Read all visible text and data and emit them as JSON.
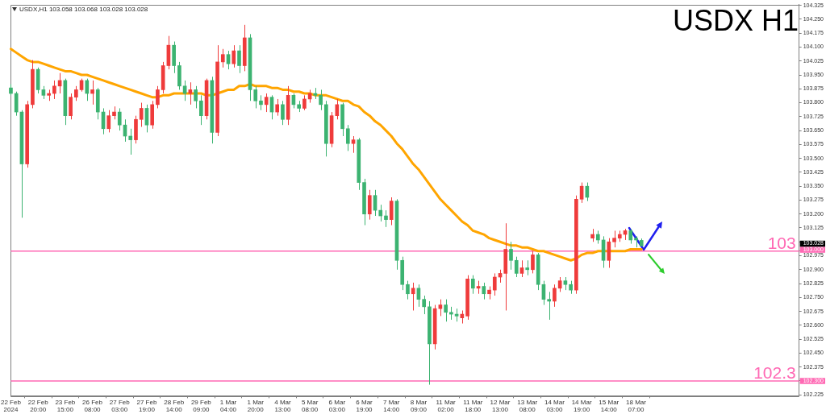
{
  "chart_data": {
    "type": "candlestick",
    "title": "USDX H1",
    "subtitle": "USDX,H1 103.058 103.068 103.028 103.028",
    "categories": [
      "22 Feb 2024",
      null,
      null,
      null,
      null,
      "22 Feb 20:00",
      null,
      null,
      null,
      null,
      "23 Feb 15:00",
      null,
      null,
      null,
      null,
      "26 Feb 08:00",
      null,
      null,
      null,
      null,
      "27 Feb 03:00",
      null,
      null,
      null,
      null,
      "27 Feb 19:00",
      null,
      null,
      null,
      null,
      "28 Feb 14:00",
      null,
      null,
      null,
      null,
      "29 Feb 09:00",
      null,
      null,
      null,
      null,
      "1 Mar 04:00",
      null,
      null,
      null,
      null,
      "1 Mar 20:00",
      null,
      null,
      null,
      null,
      "4 Mar 13:00",
      null,
      null,
      null,
      null,
      "5 Mar 08:00",
      null,
      null,
      null,
      null,
      "6 Mar 03:00",
      null,
      null,
      null,
      null,
      "6 Mar 19:00",
      null,
      null,
      null,
      null,
      "7 Mar 14:00",
      null,
      null,
      null,
      null,
      "8 Mar 09:00",
      null,
      null,
      null,
      null,
      "11 Mar 02:00",
      null,
      null,
      null,
      null,
      "11 Mar 18:00",
      null,
      null,
      null,
      null,
      "12 Mar 13:00",
      null,
      null,
      null,
      null,
      "13 Mar 08:00",
      null,
      null,
      null,
      null,
      "14 Mar 03:00",
      null,
      null,
      null,
      null,
      "14 Mar 19:00",
      null,
      null,
      null,
      null,
      "15 Mar 14:00",
      null,
      null,
      null,
      null,
      "18 Mar 07:00",
      null,
      null,
      null,
      null,
      null,
      null,
      null,
      null,
      null,
      null,
      null,
      null,
      null,
      null,
      null,
      null,
      null,
      null,
      null,
      null,
      null,
      null,
      null,
      null,
      null,
      null,
      null,
      null,
      null,
      null
    ],
    "ohlc": [
      [
        103.88,
        103.9,
        103.84,
        103.85
      ],
      [
        103.85,
        103.86,
        103.73,
        103.75
      ],
      [
        103.75,
        103.76,
        103.18,
        103.47
      ],
      [
        103.47,
        103.81,
        103.45,
        103.79
      ],
      [
        103.79,
        104.03,
        103.77,
        103.98
      ],
      [
        103.98,
        103.99,
        103.85,
        103.87
      ],
      [
        103.87,
        103.89,
        103.82,
        103.84
      ],
      [
        103.84,
        103.87,
        103.81,
        103.85
      ],
      [
        103.85,
        103.92,
        103.82,
        103.89
      ],
      [
        103.89,
        103.96,
        103.85,
        103.92
      ],
      [
        103.92,
        103.93,
        103.68,
        103.73
      ],
      [
        103.73,
        103.85,
        103.71,
        103.83
      ],
      [
        103.83,
        103.89,
        103.81,
        103.87
      ],
      [
        103.87,
        103.93,
        103.86,
        103.92
      ],
      [
        103.92,
        103.93,
        103.81,
        103.85
      ],
      [
        103.85,
        103.92,
        103.79,
        103.87
      ],
      [
        103.87,
        103.88,
        103.71,
        103.75
      ],
      [
        103.75,
        103.77,
        103.63,
        103.66
      ],
      [
        103.66,
        103.76,
        103.64,
        103.73
      ],
      [
        103.73,
        103.78,
        103.71,
        103.75
      ],
      [
        103.75,
        103.77,
        103.65,
        103.68
      ],
      [
        103.68,
        103.71,
        103.59,
        103.62
      ],
      [
        103.62,
        103.66,
        103.52,
        103.6
      ],
      [
        103.6,
        103.73,
        103.58,
        103.71
      ],
      [
        103.71,
        103.8,
        103.67,
        103.77
      ],
      [
        103.77,
        103.79,
        103.64,
        103.68
      ],
      [
        103.68,
        103.81,
        103.66,
        103.79
      ],
      [
        103.79,
        103.89,
        103.77,
        103.87
      ],
      [
        103.87,
        104.02,
        103.85,
        104.0
      ],
      [
        104.0,
        104.16,
        103.98,
        104.11
      ],
      [
        104.11,
        104.13,
        103.96,
        104.0
      ],
      [
        104.0,
        104.02,
        103.87,
        103.89
      ],
      [
        103.89,
        103.92,
        103.81,
        103.85
      ],
      [
        103.85,
        103.91,
        103.79,
        103.87
      ],
      [
        103.87,
        103.89,
        103.77,
        103.81
      ],
      [
        103.81,
        103.84,
        103.68,
        103.73
      ],
      [
        103.73,
        103.93,
        103.71,
        103.92
      ],
      [
        103.92,
        103.94,
        103.58,
        103.64
      ],
      [
        103.64,
        104.11,
        103.62,
        104.02
      ],
      [
        104.02,
        104.09,
        103.99,
        104.06
      ],
      [
        104.06,
        104.08,
        103.98,
        104.01
      ],
      [
        104.01,
        104.11,
        103.99,
        104.08
      ],
      [
        104.08,
        104.11,
        103.96,
        104.0
      ],
      [
        104.0,
        104.22,
        103.97,
        104.15
      ],
      [
        104.15,
        104.17,
        103.81,
        103.87
      ],
      [
        103.87,
        103.89,
        103.77,
        103.81
      ],
      [
        103.81,
        103.84,
        103.76,
        103.79
      ],
      [
        103.79,
        103.85,
        103.75,
        103.83
      ],
      [
        103.83,
        103.84,
        103.71,
        103.75
      ],
      [
        103.75,
        103.82,
        103.73,
        103.79
      ],
      [
        103.79,
        103.81,
        103.68,
        103.71
      ],
      [
        103.71,
        103.89,
        103.68,
        103.84
      ],
      [
        103.84,
        103.85,
        103.77,
        103.79
      ],
      [
        103.79,
        103.81,
        103.75,
        103.77
      ],
      [
        103.77,
        103.84,
        103.76,
        103.82
      ],
      [
        103.82,
        103.87,
        103.8,
        103.85
      ],
      [
        103.85,
        103.88,
        103.82,
        103.84
      ],
      [
        103.84,
        103.87,
        103.76,
        103.79
      ],
      [
        103.79,
        103.81,
        103.51,
        103.58
      ],
      [
        103.58,
        103.75,
        103.56,
        103.73
      ],
      [
        103.73,
        103.82,
        103.71,
        103.79
      ],
      [
        103.79,
        103.8,
        103.62,
        103.66
      ],
      [
        103.66,
        103.68,
        103.54,
        103.58
      ],
      [
        103.58,
        103.62,
        103.53,
        103.6
      ],
      [
        103.6,
        103.61,
        103.33,
        103.37
      ],
      [
        103.37,
        103.39,
        103.14,
        103.2
      ],
      [
        103.2,
        103.33,
        103.17,
        103.3
      ],
      [
        103.3,
        103.33,
        103.19,
        103.22
      ],
      [
        103.22,
        103.25,
        103.16,
        103.19
      ],
      [
        103.19,
        103.22,
        103.13,
        103.17
      ],
      [
        103.17,
        103.29,
        103.14,
        103.27
      ],
      [
        103.27,
        103.28,
        102.9,
        102.95
      ],
      [
        102.95,
        102.97,
        102.79,
        102.82
      ],
      [
        102.82,
        102.84,
        102.74,
        102.77
      ],
      [
        102.77,
        102.83,
        102.68,
        102.8
      ],
      [
        102.8,
        102.82,
        102.7,
        102.74
      ],
      [
        102.74,
        102.76,
        102.66,
        102.7
      ],
      [
        102.7,
        102.73,
        102.28,
        102.5
      ],
      [
        102.5,
        102.71,
        102.47,
        102.69
      ],
      [
        102.69,
        102.74,
        102.65,
        102.71
      ],
      [
        102.71,
        102.74,
        102.62,
        102.67
      ],
      [
        102.67,
        102.7,
        102.63,
        102.66
      ],
      [
        102.66,
        102.69,
        102.62,
        102.65
      ],
      [
        102.64,
        102.68,
        102.61,
        102.66
      ],
      [
        102.65,
        102.87,
        102.63,
        102.85
      ],
      [
        102.85,
        102.87,
        102.77,
        102.8
      ],
      [
        102.8,
        102.84,
        102.77,
        102.81
      ],
      [
        102.81,
        102.83,
        102.74,
        102.77
      ],
      [
        102.77,
        102.81,
        102.74,
        102.79
      ],
      [
        102.79,
        102.88,
        102.76,
        102.86
      ],
      [
        102.86,
        102.9,
        102.83,
        102.88
      ],
      [
        102.88,
        103.15,
        102.68,
        103.01
      ],
      [
        103.01,
        103.05,
        102.9,
        102.95
      ],
      [
        102.95,
        102.97,
        102.86,
        102.88
      ],
      [
        102.88,
        102.95,
        102.86,
        102.91
      ],
      [
        102.91,
        102.95,
        102.87,
        102.9
      ],
      [
        102.9,
        103.0,
        102.88,
        102.98
      ],
      [
        102.98,
        102.99,
        102.79,
        102.82
      ],
      [
        102.82,
        102.84,
        102.71,
        102.74
      ],
      [
        102.74,
        102.78,
        102.63,
        102.73
      ],
      [
        102.73,
        102.82,
        102.7,
        102.8
      ],
      [
        102.8,
        102.86,
        102.78,
        102.84
      ],
      [
        102.84,
        102.86,
        102.79,
        102.82
      ],
      [
        102.82,
        102.84,
        102.77,
        102.79
      ],
      [
        102.79,
        103.3,
        102.77,
        103.28
      ],
      [
        103.28,
        103.37,
        103.26,
        103.35
      ],
      [
        103.35,
        103.37,
        103.27,
        103.29
      ],
      [
        103.07,
        103.12,
        103.05,
        103.09
      ],
      [
        103.09,
        103.11,
        103.04,
        103.06
      ],
      [
        103.06,
        103.08,
        102.91,
        102.95
      ],
      [
        102.95,
        103.07,
        102.91,
        103.05
      ],
      [
        103.05,
        103.11,
        103.02,
        103.07
      ],
      [
        103.07,
        103.11,
        103.05,
        103.09
      ],
      [
        103.09,
        103.12,
        103.06,
        103.11
      ],
      [
        103.11,
        103.12,
        103.04,
        103.06
      ],
      [
        103.07,
        103.08,
        103.02,
        103.06
      ],
      [
        103.058,
        103.068,
        103.028,
        103.028
      ],
      null,
      null,
      null,
      null,
      null,
      null,
      null,
      null,
      null,
      null,
      null,
      null,
      null,
      null,
      null,
      null,
      null,
      null,
      null,
      null,
      null,
      null,
      null,
      null,
      null,
      null,
      null,
      null,
      null
    ],
    "colors": [
      "#3cb371",
      "#3cb371",
      "#3cb371",
      "#ef3b3b",
      "#ef3b3b",
      "#3cb371",
      "#3cb371",
      "#ef3b3b",
      "#ef3b3b",
      "#ef3b3b",
      "#3cb371",
      "#ef3b3b",
      "#ef3b3b",
      "#ef3b3b",
      "#3cb371",
      "#ef3b3b",
      "#3cb371",
      "#3cb371",
      "#ef3b3b",
      "#ef3b3b",
      "#3cb371",
      "#3cb371",
      "#3cb371",
      "#ef3b3b",
      "#ef3b3b",
      "#3cb371",
      "#ef3b3b",
      "#ef3b3b",
      "#ef3b3b",
      "#ef3b3b",
      "#3cb371",
      "#3cb371",
      "#3cb371",
      "#ef3b3b",
      "#3cb371",
      "#3cb371",
      "#ef3b3b",
      "#3cb371",
      "#ef3b3b",
      "#ef3b3b",
      "#3cb371",
      "#ef3b3b",
      "#3cb371",
      "#ef3b3b",
      "#3cb371",
      "#3cb371",
      "#3cb371",
      "#ef3b3b",
      "#3cb371",
      "#ef3b3b",
      "#3cb371",
      "#ef3b3b",
      "#3cb371",
      "#3cb371",
      "#ef3b3b",
      "#ef3b3b",
      "#3cb371",
      "#3cb371",
      "#3cb371",
      "#ef3b3b",
      "#ef3b3b",
      "#3cb371",
      "#3cb371",
      "#ef3b3b",
      "#3cb371",
      "#3cb371",
      "#ef3b3b",
      "#3cb371",
      "#3cb371",
      "#3cb371",
      "#ef3b3b",
      "#3cb371",
      "#3cb371",
      "#3cb371",
      "#ef3b3b",
      "#3cb371",
      "#3cb371",
      "#3cb371",
      "#ef3b3b",
      "#ef3b3b",
      "#3cb371",
      "#3cb371",
      "#3cb371",
      "#ef3b3b",
      "#ef3b3b",
      "#3cb371",
      "#ef3b3b",
      "#3cb371",
      "#ef3b3b",
      "#ef3b3b",
      "#ef3b3b",
      "#ef3b3b",
      "#3cb371",
      "#3cb371",
      "#ef3b3b",
      "#3cb371",
      "#ef3b3b",
      "#3cb371",
      "#3cb371",
      "#3cb371",
      "#ef3b3b",
      "#ef3b3b",
      "#3cb371",
      "#3cb371",
      "#ef3b3b",
      "#ef3b3b",
      "#3cb371",
      "#ef3b3b",
      "#3cb371",
      "#3cb371",
      "#ef3b3b",
      "#ef3b3b",
      "#ef3b3b",
      "#ef3b3b",
      "#3cb371",
      "#3cb371",
      "#3cb371",
      null,
      null,
      null,
      null,
      null,
      null,
      null,
      null,
      null,
      null,
      null,
      null,
      null,
      null,
      null,
      null,
      null,
      null,
      null,
      null,
      null,
      null,
      null,
      null,
      null,
      null,
      null,
      null,
      null
    ],
    "series": [
      {
        "type": "line",
        "color": "#ffa500",
        "values": [
          104.09,
          104.07,
          104.05,
          104.03,
          104.02,
          104.02,
          104.01,
          104.0,
          103.99,
          103.98,
          103.97,
          103.97,
          103.96,
          103.95,
          103.95,
          103.94,
          103.93,
          103.92,
          103.91,
          103.9,
          103.89,
          103.88,
          103.87,
          103.86,
          103.85,
          103.84,
          103.83,
          103.83,
          103.84,
          103.84,
          103.85,
          103.85,
          103.85,
          103.85,
          103.85,
          103.85,
          103.84,
          103.84,
          103.85,
          103.86,
          103.87,
          103.87,
          103.89,
          103.89,
          103.9,
          103.89,
          103.89,
          103.89,
          103.88,
          103.88,
          103.87,
          103.87,
          103.86,
          103.86,
          103.85,
          103.85,
          103.84,
          103.84,
          103.84,
          103.83,
          103.82,
          103.81,
          103.81,
          103.79,
          103.78,
          103.75,
          103.73,
          103.7,
          103.68,
          103.65,
          103.62,
          103.58,
          103.55,
          103.51,
          103.47,
          103.44,
          103.4,
          103.36,
          103.32,
          103.28,
          103.25,
          103.22,
          103.19,
          103.16,
          103.14,
          103.11,
          103.1,
          103.09,
          103.07,
          103.06,
          103.05,
          103.04,
          103.03,
          103.03,
          103.02,
          103.02,
          103.01,
          103.0,
          103.0,
          102.99,
          102.98,
          102.97,
          102.96,
          102.95,
          102.96,
          102.98,
          102.99,
          102.99,
          103.0,
          103.0,
          103.0,
          103.0,
          103.0,
          103.0,
          103.01,
          103.01,
          103.01,
          null,
          null,
          null,
          null,
          null,
          null,
          null,
          null,
          null,
          null,
          null,
          null,
          null,
          null,
          null,
          null,
          null,
          null,
          null,
          null,
          null,
          null,
          null,
          null,
          null,
          null,
          null,
          null,
          null
        ]
      }
    ],
    "ylim": [
      102.22,
      104.33
    ],
    "yticks": [
      102.225,
      {
        "value": 102.3,
        "label": "102.300"
      },
      102.375,
      {
        "value": 102.45,
        "label": "102.450"
      },
      102.525,
      {
        "value": 102.6,
        "label": "102.600"
      },
      102.675,
      {
        "value": 102.75,
        "label": "102.750"
      },
      102.825,
      {
        "value": 102.9,
        "label": "102.900"
      },
      102.975,
      {
        "value": 103,
        "label": "103.000"
      },
      {
        "value": 103.05,
        "label": null
      },
      103.125,
      {
        "value": 103.2,
        "label": "103.200"
      },
      103.275,
      {
        "value": 103.35,
        "label": "103.350"
      },
      103.425,
      {
        "value": 103.5,
        "label": "103.500"
      },
      103.575,
      {
        "value": 103.65,
        "label": "103.650"
      },
      103.725,
      {
        "value": 103.8,
        "label": "103.800"
      },
      103.875,
      {
        "value": 103.95,
        "label": "103.950"
      },
      104.025,
      {
        "value": 104.1,
        "label": "104.100"
      },
      104.175,
      {
        "value": 104.25,
        "label": "104.250"
      },
      104.325
    ],
    "ref_lines": [
      {
        "axis": "y",
        "value": 103,
        "label": "103",
        "color": "#ff69b4"
      },
      {
        "axis": "y",
        "value": 102.3,
        "label": "102.3",
        "color": "#ff69b4"
      }
    ],
    "annotations": [
      "103.028"
    ]
  }
}
